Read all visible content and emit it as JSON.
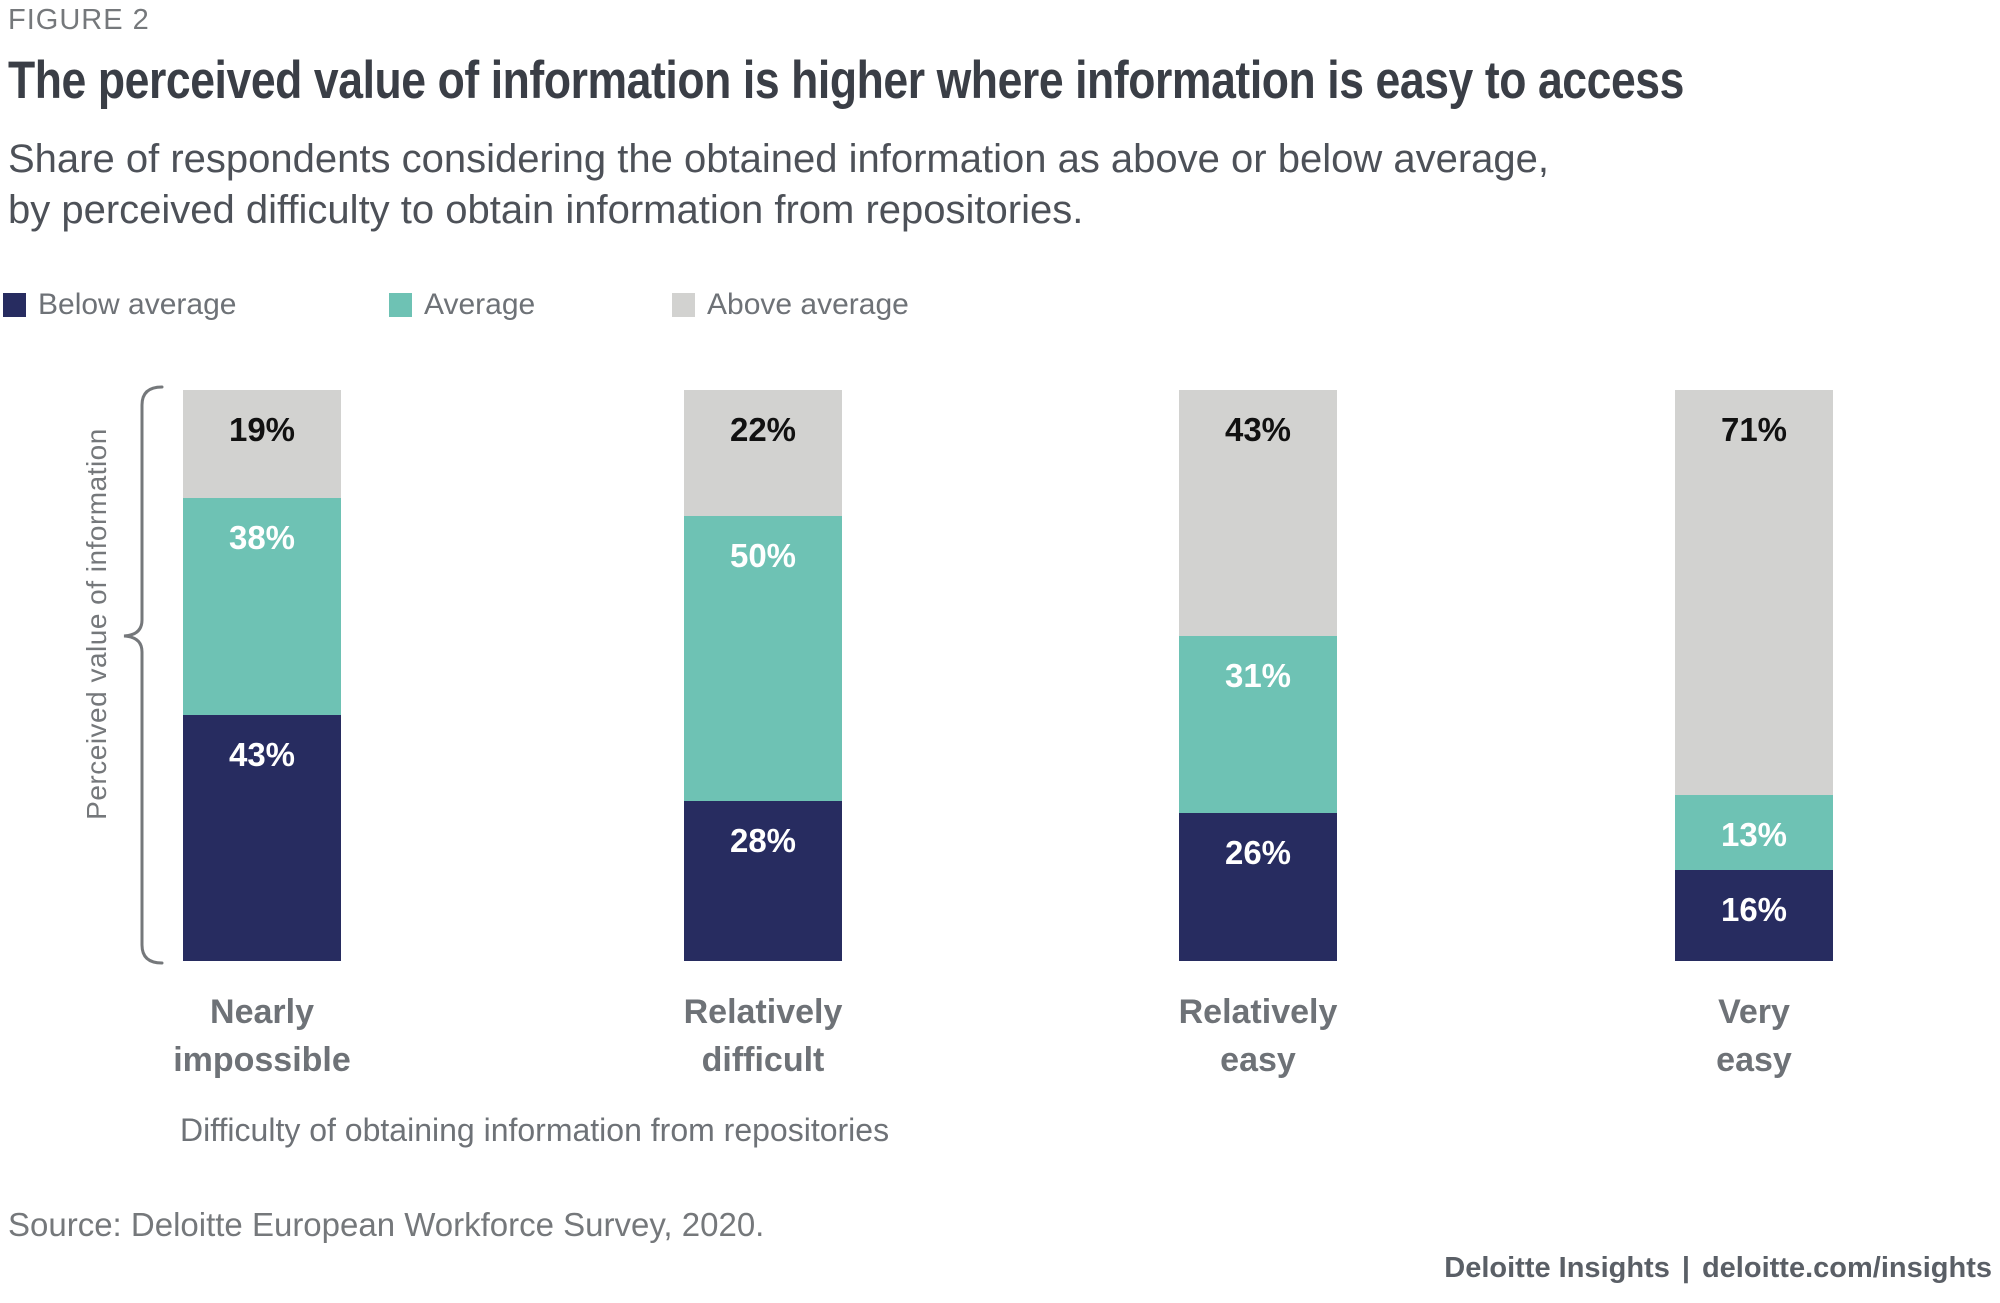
{
  "figure_label": "FIGURE 2",
  "title": "The perceived value of information is higher where information is easy to access",
  "subtitle": "Share of respondents considering the obtained information as above or below average,\nby perceived difficulty to obtain information from repositories.",
  "chart_data": {
    "type": "bar",
    "stacked": true,
    "categories": [
      "Nearly\nimpossible",
      "Relatively\ndifficult",
      "Relatively\neasy",
      "Very\neasy"
    ],
    "series": [
      {
        "name": "Below average",
        "color": "#272C60",
        "label_color": "#FFFFFF",
        "values": [
          43,
          28,
          26,
          16
        ]
      },
      {
        "name": "Average",
        "color": "#6EC2B4",
        "label_color": "#FFFFFF",
        "values": [
          38,
          50,
          31,
          13
        ]
      },
      {
        "name": "Above average",
        "color": "#D2D2D0",
        "label_color": "#111111",
        "values": [
          19,
          22,
          43,
          71
        ]
      }
    ],
    "value_suffix": "%",
    "xlabel": "Difficulty of obtaining information from repositories",
    "ylabel": "Perceived value of information",
    "ylim": [
      0,
      100
    ],
    "grid": false,
    "legend_position": "top",
    "stack_order_top_to_bottom": [
      "Above average",
      "Average",
      "Below average"
    ]
  },
  "source": "Source: Deloitte European Workforce Survey, 2020.",
  "footer": {
    "brand": "Deloitte Insights",
    "separator": "|",
    "url": "deloitte.com/insights"
  }
}
